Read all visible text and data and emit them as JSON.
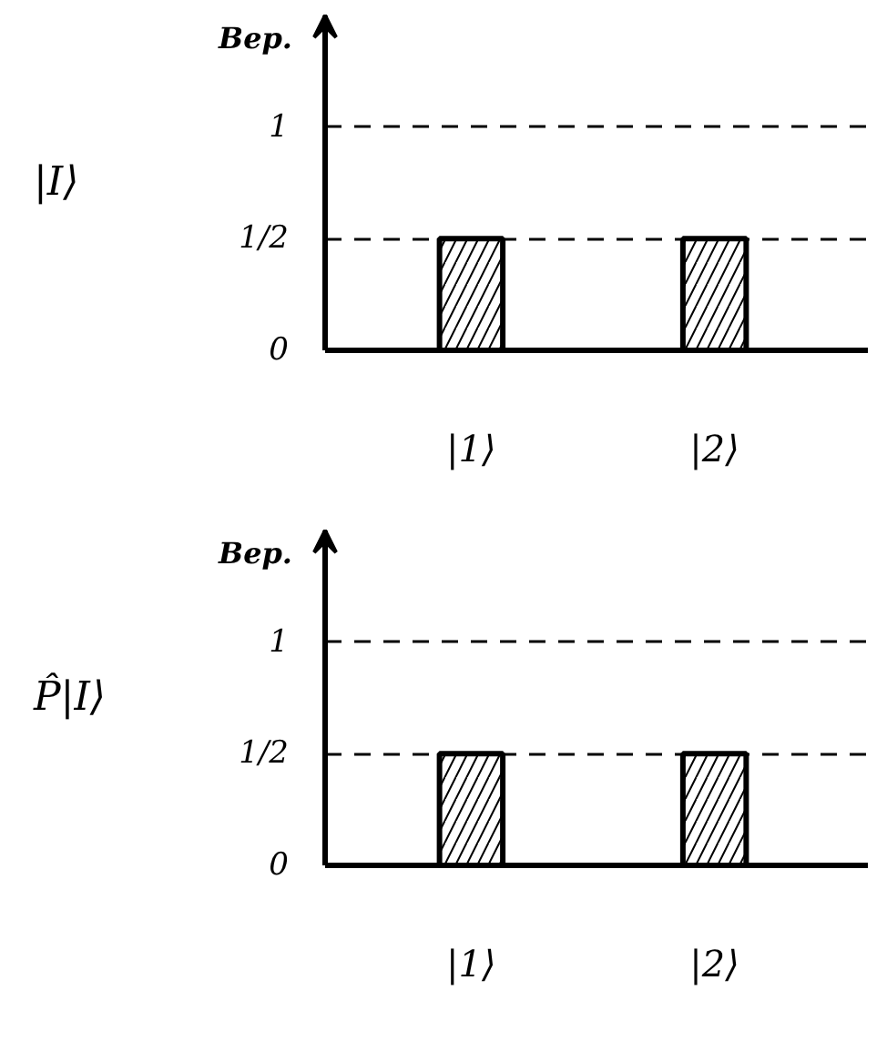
{
  "chart_data": [
    {
      "type": "bar",
      "title": "|I⟩",
      "ylabel": "Вер.",
      "categories": [
        "|1⟩",
        "|2⟩"
      ],
      "values": [
        0.5,
        0.5
      ],
      "color": "#000000",
      "ylim": [
        0,
        1.5
      ],
      "yticks": [
        0,
        {
          "value": 0.5,
          "label": "1/2"
        },
        1
      ],
      "grid": "y"
    },
    {
      "type": "bar",
      "title": "P̂|I⟩",
      "ylabel": "Вер.",
      "categories": [
        "|1⟩",
        "|2⟩"
      ],
      "values": [
        0.5,
        0.5
      ],
      "color": "#000000",
      "ylim": [
        0,
        1.5
      ],
      "yticks": [
        0,
        {
          "value": 0.5,
          "label": "1/2"
        },
        1
      ],
      "grid": "y"
    }
  ]
}
